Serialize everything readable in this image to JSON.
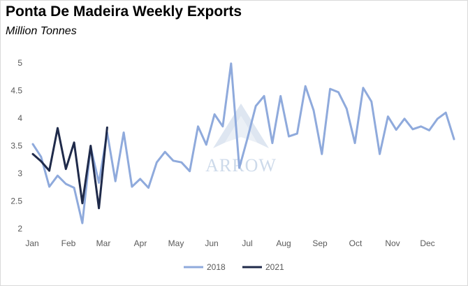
{
  "chart_data": {
    "type": "line",
    "title": "Ponta De Madeira Weekly Exports",
    "subtitle": "Million Tonnes",
    "xlabel": "",
    "ylabel": "",
    "ylim": [
      2,
      5
    ],
    "yticks": [
      "2",
      "2.5",
      "3",
      "3.5",
      "4",
      "4.5",
      "5"
    ],
    "months": [
      "Jan",
      "Feb",
      "Mar",
      "Apr",
      "May",
      "Jun",
      "Jul",
      "Aug",
      "Sep",
      "Oct",
      "Nov",
      "Dec"
    ],
    "grid": false,
    "legend_position": "bottom",
    "watermark": "ARROW",
    "series": [
      {
        "name": "2018",
        "color": "#8faadc",
        "values": [
          3.53,
          3.3,
          2.76,
          2.96,
          2.81,
          2.74,
          2.1,
          3.48,
          2.83,
          3.74,
          2.86,
          3.74,
          2.76,
          2.9,
          2.74,
          3.2,
          3.39,
          3.23,
          3.2,
          3.04,
          3.85,
          3.52,
          4.07,
          3.85,
          4.99,
          3.1,
          3.64,
          4.22,
          4.4,
          3.55,
          4.4,
          3.67,
          3.72,
          4.58,
          4.14,
          3.35,
          4.53,
          4.47,
          4.17,
          3.55,
          4.55,
          4.3,
          3.35,
          4.03,
          3.79,
          3.99,
          3.8,
          3.85,
          3.78,
          3.99,
          4.1,
          3.62
        ]
      },
      {
        "name": "2021",
        "color": "#1f2a4a",
        "values": [
          3.35,
          3.22,
          3.05,
          3.82,
          3.08,
          3.56,
          2.46,
          3.5,
          2.37,
          3.83
        ]
      }
    ]
  }
}
